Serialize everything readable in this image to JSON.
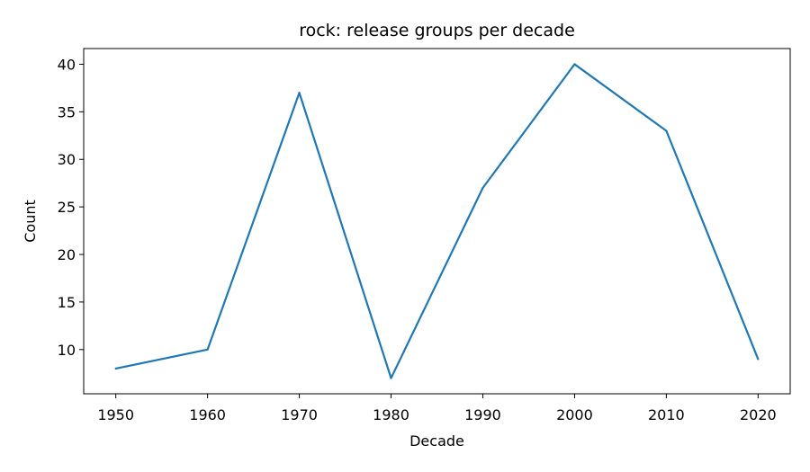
{
  "chart_data": {
    "type": "line",
    "title": "rock: release groups per decade",
    "xlabel": "Decade",
    "ylabel": "Count",
    "x": [
      1950,
      1960,
      1970,
      1980,
      1990,
      2000,
      2010,
      2020
    ],
    "series": [
      {
        "values": [
          8,
          10,
          37,
          7,
          27,
          40,
          33,
          9
        ],
        "color": "#1f77b4"
      }
    ],
    "xticks": [
      "1950",
      "1960",
      "1970",
      "1980",
      "1990",
      "2000",
      "2010",
      "2020"
    ],
    "yticks": [
      "10",
      "15",
      "20",
      "25",
      "30",
      "35",
      "40"
    ],
    "xlim": [
      1946.5,
      2023.5
    ],
    "ylim": [
      5.35,
      41.65
    ],
    "grid": false,
    "legend": "none"
  }
}
